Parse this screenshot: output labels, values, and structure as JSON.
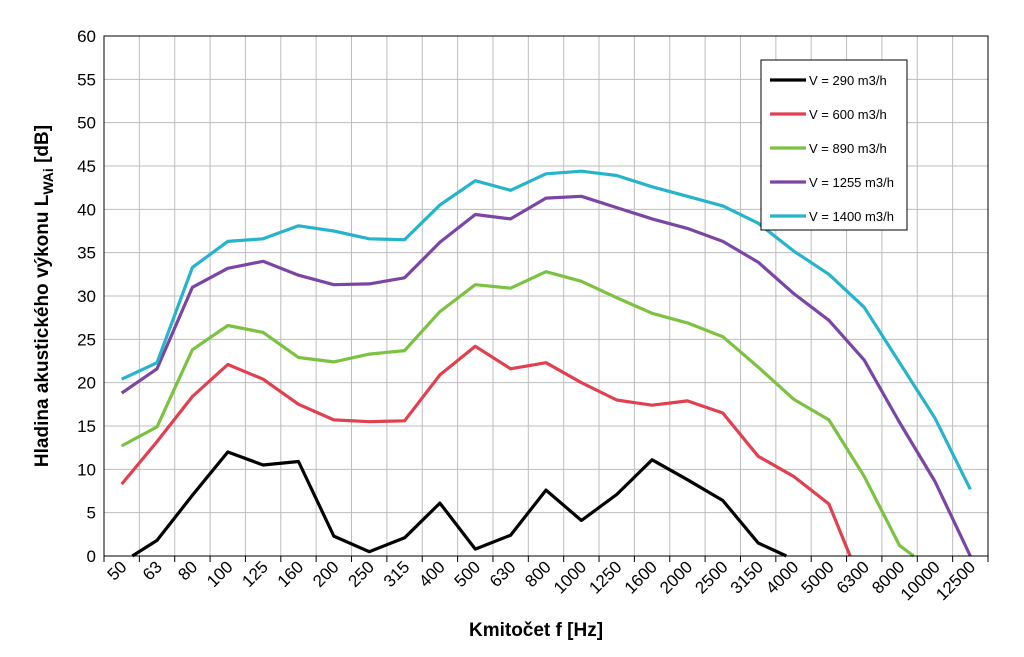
{
  "chart_data": {
    "type": "line",
    "title": "",
    "xlabel": "Kmitočet f [Hz]",
    "ylabel_main": "Hladina akustického výkonu  L",
    "ylabel_sub": "WAi",
    "ylabel_tail": " [dB]",
    "ylim": [
      0,
      60
    ],
    "ytick_step": 5,
    "grid": true,
    "legend_position": "top-right",
    "categories": [
      "50",
      "63",
      "80",
      "100",
      "125",
      "160",
      "200",
      "250",
      "315",
      "400",
      "500",
      "630",
      "800",
      "1000",
      "1250",
      "1600",
      "2000",
      "2500",
      "3150",
      "4000",
      "5000",
      "6300",
      "8000",
      "10000",
      "12500"
    ],
    "x_positions": [
      0,
      1,
      2,
      3,
      4,
      5,
      6,
      7,
      8,
      9,
      10,
      11,
      12,
      13,
      14,
      15,
      16,
      17,
      18,
      19,
      20,
      21,
      22,
      23,
      24
    ],
    "x_range": [
      -0.5,
      24.5
    ],
    "series": [
      {
        "name": "V = 290 m3/h",
        "color": "#000000",
        "x": [
          0.3,
          1,
          2,
          3,
          4,
          5,
          6,
          7,
          8,
          9,
          10,
          11,
          12,
          13,
          14,
          15,
          16,
          17,
          18,
          18.8
        ],
        "y": [
          0,
          1.8,
          7.0,
          12.0,
          10.5,
          10.9,
          2.3,
          0.5,
          2.1,
          6.1,
          0.8,
          2.4,
          7.6,
          4.1,
          7.1,
          11.1,
          8.8,
          6.4,
          1.5,
          0
        ]
      },
      {
        "name": "V = 600 m3/h",
        "color": "#e0404f",
        "x": [
          0,
          1,
          2,
          3,
          4,
          5,
          6,
          7,
          8,
          9,
          10,
          11,
          12,
          13,
          14,
          15,
          16,
          17,
          18,
          19,
          20,
          20.6
        ],
        "y": [
          8.3,
          13.2,
          18.4,
          22.1,
          20.4,
          17.5,
          15.7,
          15.5,
          15.6,
          20.9,
          24.2,
          21.6,
          22.3,
          20.0,
          18.0,
          17.4,
          17.9,
          16.5,
          11.5,
          9.2,
          6.0,
          0
        ]
      },
      {
        "name": "V = 890 m3/h",
        "color": "#7cc242",
        "x": [
          0,
          1,
          2,
          3,
          4,
          5,
          6,
          7,
          8,
          9,
          10,
          11,
          12,
          13,
          14,
          15,
          16,
          17,
          18,
          19,
          20,
          21,
          22,
          22.4
        ],
        "y": [
          12.7,
          14.9,
          23.8,
          26.6,
          25.8,
          22.9,
          22.4,
          23.3,
          23.7,
          28.2,
          31.3,
          30.9,
          32.8,
          31.7,
          29.8,
          28.0,
          26.9,
          25.3,
          21.8,
          18.1,
          15.7,
          9.2,
          1.2,
          0
        ]
      },
      {
        "name": "V = 1255 m3/h",
        "color": "#7b45a6",
        "x": [
          0,
          1,
          2,
          3,
          4,
          5,
          6,
          7,
          8,
          9,
          10,
          11,
          12,
          13,
          14,
          15,
          16,
          17,
          18,
          19,
          20,
          21,
          22,
          23,
          24
        ],
        "y": [
          18.8,
          21.6,
          31.0,
          33.2,
          34.0,
          32.4,
          31.3,
          31.4,
          32.1,
          36.2,
          39.4,
          38.9,
          41.3,
          41.5,
          40.2,
          38.9,
          37.8,
          36.3,
          33.9,
          30.3,
          27.2,
          22.6,
          15.4,
          8.6,
          0
        ]
      },
      {
        "name": "V = 1400 m3/h",
        "color": "#26b3cc",
        "x": [
          0,
          1,
          2,
          3,
          4,
          5,
          6,
          7,
          8,
          9,
          10,
          11,
          12,
          13,
          14,
          15,
          16,
          17,
          18,
          19,
          20,
          21,
          22,
          23,
          24
        ],
        "y": [
          20.4,
          22.3,
          33.3,
          36.3,
          36.6,
          38.1,
          37.5,
          36.6,
          36.5,
          40.5,
          43.3,
          42.2,
          44.1,
          44.4,
          43.9,
          42.6,
          41.5,
          40.4,
          38.4,
          35.2,
          32.5,
          28.7,
          22.3,
          15.9,
          7.7
        ]
      }
    ]
  }
}
